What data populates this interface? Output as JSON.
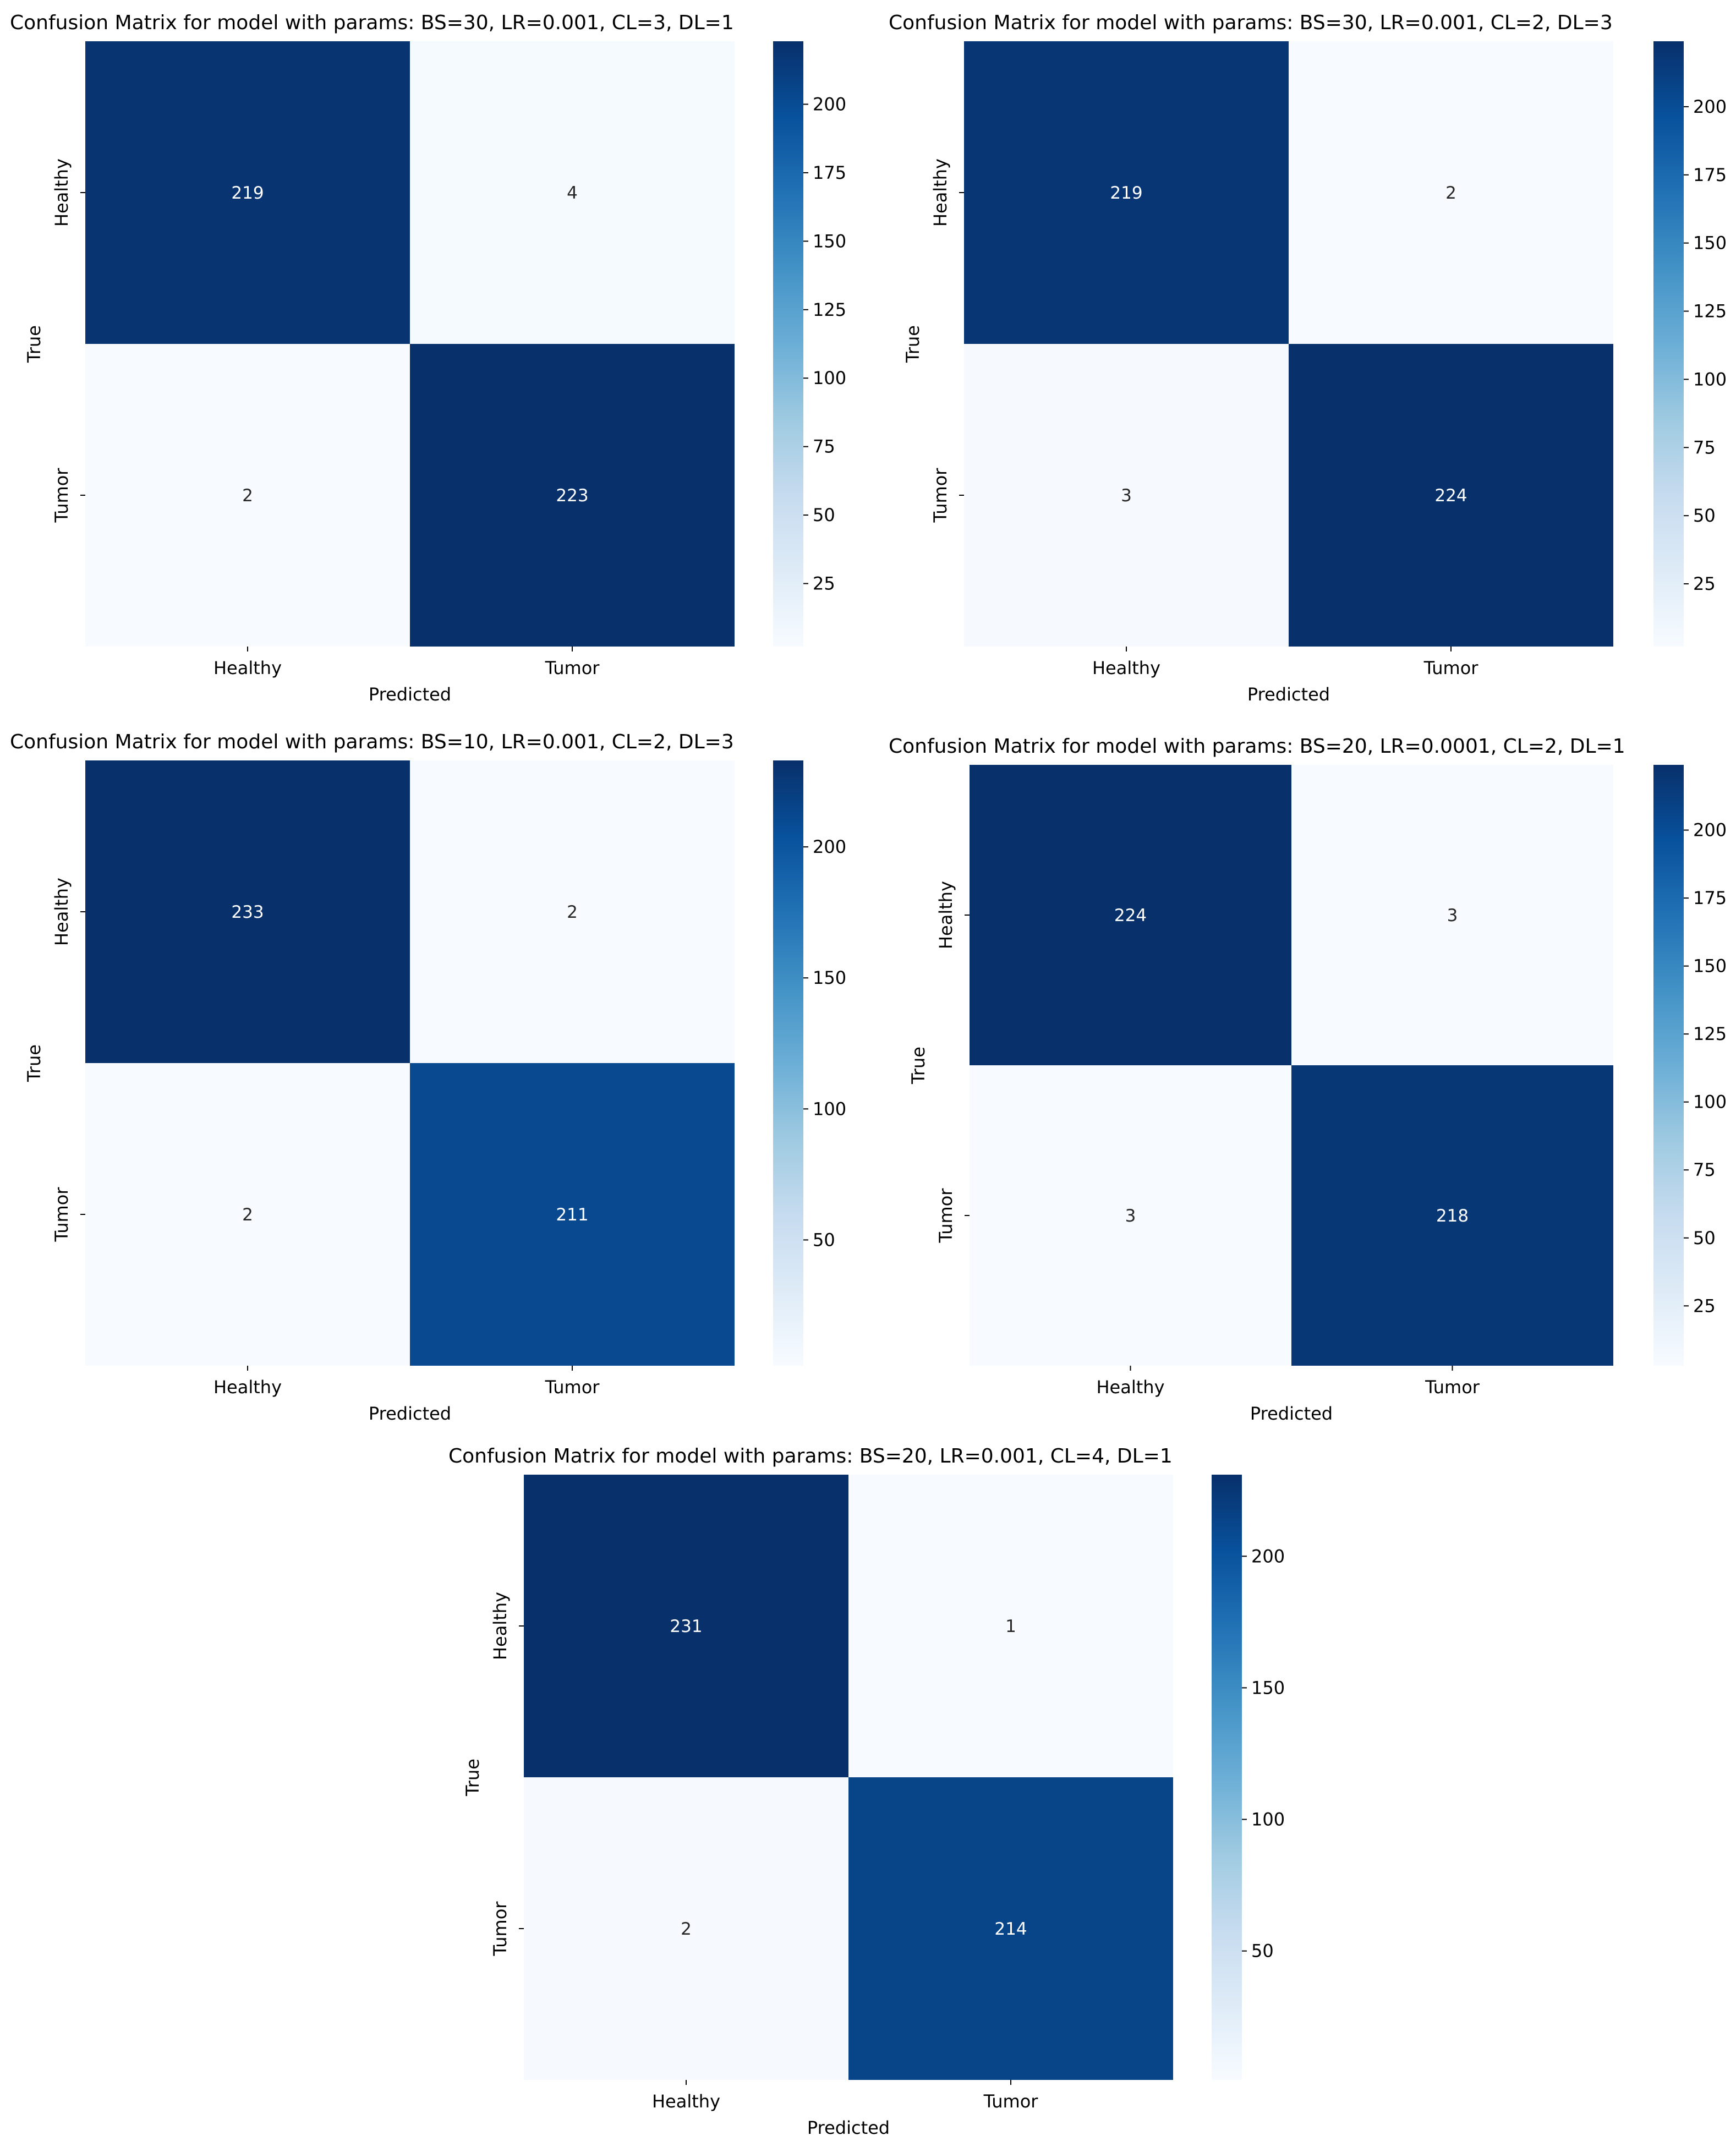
{
  "chart_data": [
    {
      "type": "heatmap",
      "title": "Confusion Matrix for model with params: BS=30, LR=0.001, CL=3, DL=1",
      "xlabel": "Predicted",
      "ylabel": "True",
      "x_categories": [
        "Healthy",
        "Tumor"
      ],
      "y_categories": [
        "Healthy",
        "Tumor"
      ],
      "values": [
        [
          219,
          4
        ],
        [
          2,
          223
        ]
      ],
      "colormap": "Blues",
      "colorbar_ticks": [
        25,
        50,
        75,
        100,
        125,
        150,
        175,
        200
      ],
      "grid": false
    },
    {
      "type": "heatmap",
      "title": "Confusion Matrix for model with params: BS=30, LR=0.001, CL=2, DL=3",
      "xlabel": "Predicted",
      "ylabel": "True",
      "x_categories": [
        "Healthy",
        "Tumor"
      ],
      "y_categories": [
        "Healthy",
        "Tumor"
      ],
      "values": [
        [
          219,
          2
        ],
        [
          3,
          224
        ]
      ],
      "colormap": "Blues",
      "colorbar_ticks": [
        25,
        50,
        75,
        100,
        125,
        150,
        175,
        200
      ],
      "grid": false
    },
    {
      "type": "heatmap",
      "title": "Confusion Matrix for model with params: BS=10, LR=0.001, CL=2, DL=3",
      "xlabel": "Predicted",
      "ylabel": "True",
      "x_categories": [
        "Healthy",
        "Tumor"
      ],
      "y_categories": [
        "Healthy",
        "Tumor"
      ],
      "values": [
        [
          233,
          2
        ],
        [
          2,
          211
        ]
      ],
      "colormap": "Blues",
      "colorbar_ticks": [
        50,
        100,
        150,
        200
      ],
      "grid": false
    },
    {
      "type": "heatmap",
      "title": "Confusion Matrix for model with params: BS=20, LR=0.0001, CL=2, DL=1",
      "xlabel": "Predicted",
      "ylabel": "True",
      "x_categories": [
        "Healthy",
        "Tumor"
      ],
      "y_categories": [
        "Healthy",
        "Tumor"
      ],
      "values": [
        [
          224,
          3
        ],
        [
          3,
          218
        ]
      ],
      "colormap": "Blues",
      "colorbar_ticks": [
        25,
        50,
        75,
        100,
        125,
        150,
        175,
        200
      ],
      "grid": false
    },
    {
      "type": "heatmap",
      "title": "Confusion Matrix for model with params: BS=20, LR=0.001, CL=4, DL=1",
      "xlabel": "Predicted",
      "ylabel": "True",
      "x_categories": [
        "Healthy",
        "Tumor"
      ],
      "y_categories": [
        "Healthy",
        "Tumor"
      ],
      "values": [
        [
          231,
          1
        ],
        [
          2,
          214
        ]
      ],
      "colormap": "Blues",
      "colorbar_ticks": [
        50,
        100,
        150,
        200
      ],
      "grid": false
    }
  ]
}
